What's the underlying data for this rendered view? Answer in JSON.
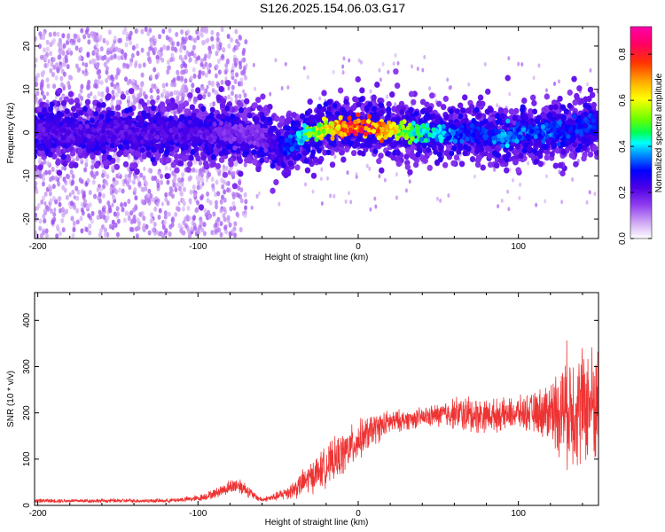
{
  "title": "S126.2025.154.06.03.G17",
  "chart_data": [
    {
      "type": "heatmap",
      "xlabel": "Height of straight line (km)",
      "ylabel": "Frequency (Hz)",
      "xlim": [
        -202,
        150
      ],
      "ylim": [
        -24.5,
        24.5
      ],
      "xticks": [
        -200,
        -100,
        0,
        100
      ],
      "yticks": [
        -20,
        -10,
        0,
        10,
        20
      ],
      "colorbar": {
        "label": "Normalized spectral amplitude",
        "range": [
          0,
          0.92
        ],
        "ticks": [
          "0.0",
          "0.2",
          "0.4",
          "0.6",
          "0.8"
        ],
        "colors": [
          "#ffffff",
          "#d3aef5",
          "#8f3bf0",
          "#5a00e6",
          "#0000ff",
          "#0099ff",
          "#00ffff",
          "#00ff55",
          "#66ff00",
          "#ffff00",
          "#ffaa00",
          "#ff3300",
          "#ff0066",
          "#ff00aa"
        ]
      },
      "ridge": {
        "x": [
          -200,
          -150,
          -100,
          -80,
          -60,
          -55,
          -50,
          -40,
          -30,
          -20,
          -10,
          0,
          10,
          20,
          30,
          40,
          50,
          60,
          70,
          80,
          90,
          100,
          110,
          120,
          130,
          140,
          150
        ],
        "frequency": [
          0,
          0,
          0,
          0,
          -1,
          -2,
          -4,
          -2,
          0,
          1,
          1,
          1,
          1,
          0.5,
          0.5,
          0,
          -0.5,
          0,
          0,
          -0.5,
          -1.5,
          -0.5,
          0,
          0.5,
          0,
          1,
          2
        ],
        "peak_amplitude": [
          0.25,
          0.25,
          0.25,
          0.2,
          0.2,
          0.25,
          0.3,
          0.4,
          0.6,
          0.75,
          0.85,
          0.9,
          0.85,
          0.75,
          0.6,
          0.5,
          0.45,
          0.4,
          0.35,
          0.35,
          0.45,
          0.4,
          0.4,
          0.4,
          0.35,
          0.35,
          0.35
        ]
      },
      "scatter_extent_x": [
        -202,
        -70
      ]
    },
    {
      "type": "line",
      "color": "#ee3333",
      "xlabel": "Height of straight line (km)",
      "ylabel": "SNR (10 * v/v)",
      "xlim": [
        -202,
        150
      ],
      "ylim": [
        0,
        460
      ],
      "xticks": [
        -200,
        -100,
        0,
        100
      ],
      "yticks": [
        0,
        100,
        200,
        300,
        400
      ],
      "envelope": {
        "x": [
          -202,
          -180,
          -150,
          -120,
          -100,
          -90,
          -80,
          -75,
          -70,
          -65,
          -60,
          -50,
          -40,
          -30,
          -20,
          -10,
          0,
          10,
          20,
          30,
          40,
          50,
          60,
          70,
          80,
          90,
          100,
          110,
          120,
          125,
          130,
          135,
          140,
          145,
          150
        ],
        "mean": [
          10,
          10,
          10,
          10,
          15,
          25,
          40,
          45,
          35,
          20,
          12,
          20,
          35,
          60,
          85,
          110,
          140,
          165,
          180,
          185,
          190,
          195,
          200,
          195,
          195,
          195,
          200,
          200,
          205,
          205,
          215,
          210,
          215,
          220,
          220
        ],
        "spread": [
          5,
          5,
          5,
          5,
          8,
          12,
          18,
          22,
          18,
          10,
          6,
          12,
          25,
          40,
          50,
          55,
          50,
          40,
          30,
          25,
          25,
          30,
          40,
          50,
          40,
          40,
          40,
          50,
          80,
          110,
          150,
          150,
          150,
          150,
          150
        ]
      }
    }
  ]
}
